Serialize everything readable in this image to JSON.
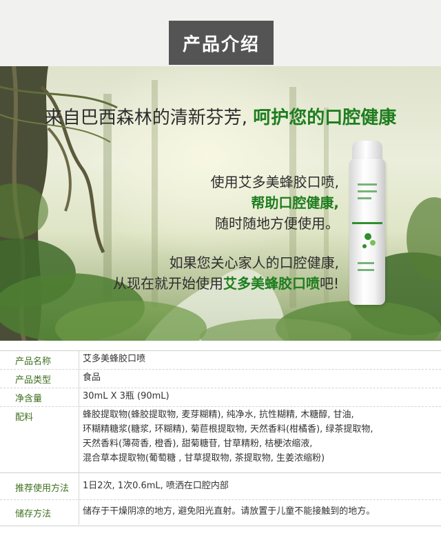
{
  "header": {
    "title": "产品介绍"
  },
  "hero": {
    "headline_plain": "来自巴西森林的清新芬芳,",
    "headline_highlight": "呵护您的口腔健康",
    "copy1_line1": "使用艾多美蜂胶口喷,",
    "copy1_line2": "帮助口腔健康,",
    "copy1_line3": "随时随地方便使用。",
    "copy2_line1": "如果您关心家人的口腔健康,",
    "copy2_line2_prefix": "从现在就开始使用",
    "copy2_line2_highlight": "艾多美蜂胶口喷",
    "copy2_line2_suffix": "吧!"
  },
  "specs": {
    "rows": [
      {
        "label": "产品名称",
        "lines": [
          "艾多美蜂胶口喷"
        ]
      },
      {
        "label": "产品类型",
        "lines": [
          "食品"
        ]
      },
      {
        "label": "净含量",
        "lines": [
          "30mL X 3瓶 (90mL)"
        ]
      },
      {
        "label": "配料",
        "lines": [
          "蜂胶提取物(蜂胶提取物, 麦芽糊精), 纯净水, 抗性糊精, 木糖醇, 甘油,",
          "环糊精糖浆(糖浆, 环糊精), 菊苣根提取物, 天然香料(柑橘香), 绿茶提取物,",
          "天然香料(薄荷香, 橙香), 甜菊糖苷, 甘草精粉, 桔梗浓缩液,",
          "混合草本提取物(葡萄糖 , 甘草提取物, 茶提取物, 生姜浓缩粉)"
        ]
      },
      {
        "label": "推荐使用方法",
        "lines": [
          "1日2次, 1次0.6mL, 喷洒在口腔内部"
        ]
      },
      {
        "label": "储存方法",
        "lines": [
          "储存于干燥阴凉的地方, 避免阳光直射。请放置于儿童不能接触到的地方。"
        ]
      }
    ]
  },
  "colors": {
    "accent_green": "#1e7d1e",
    "label_green": "#3e6f1e",
    "header_tab": "#545454"
  }
}
